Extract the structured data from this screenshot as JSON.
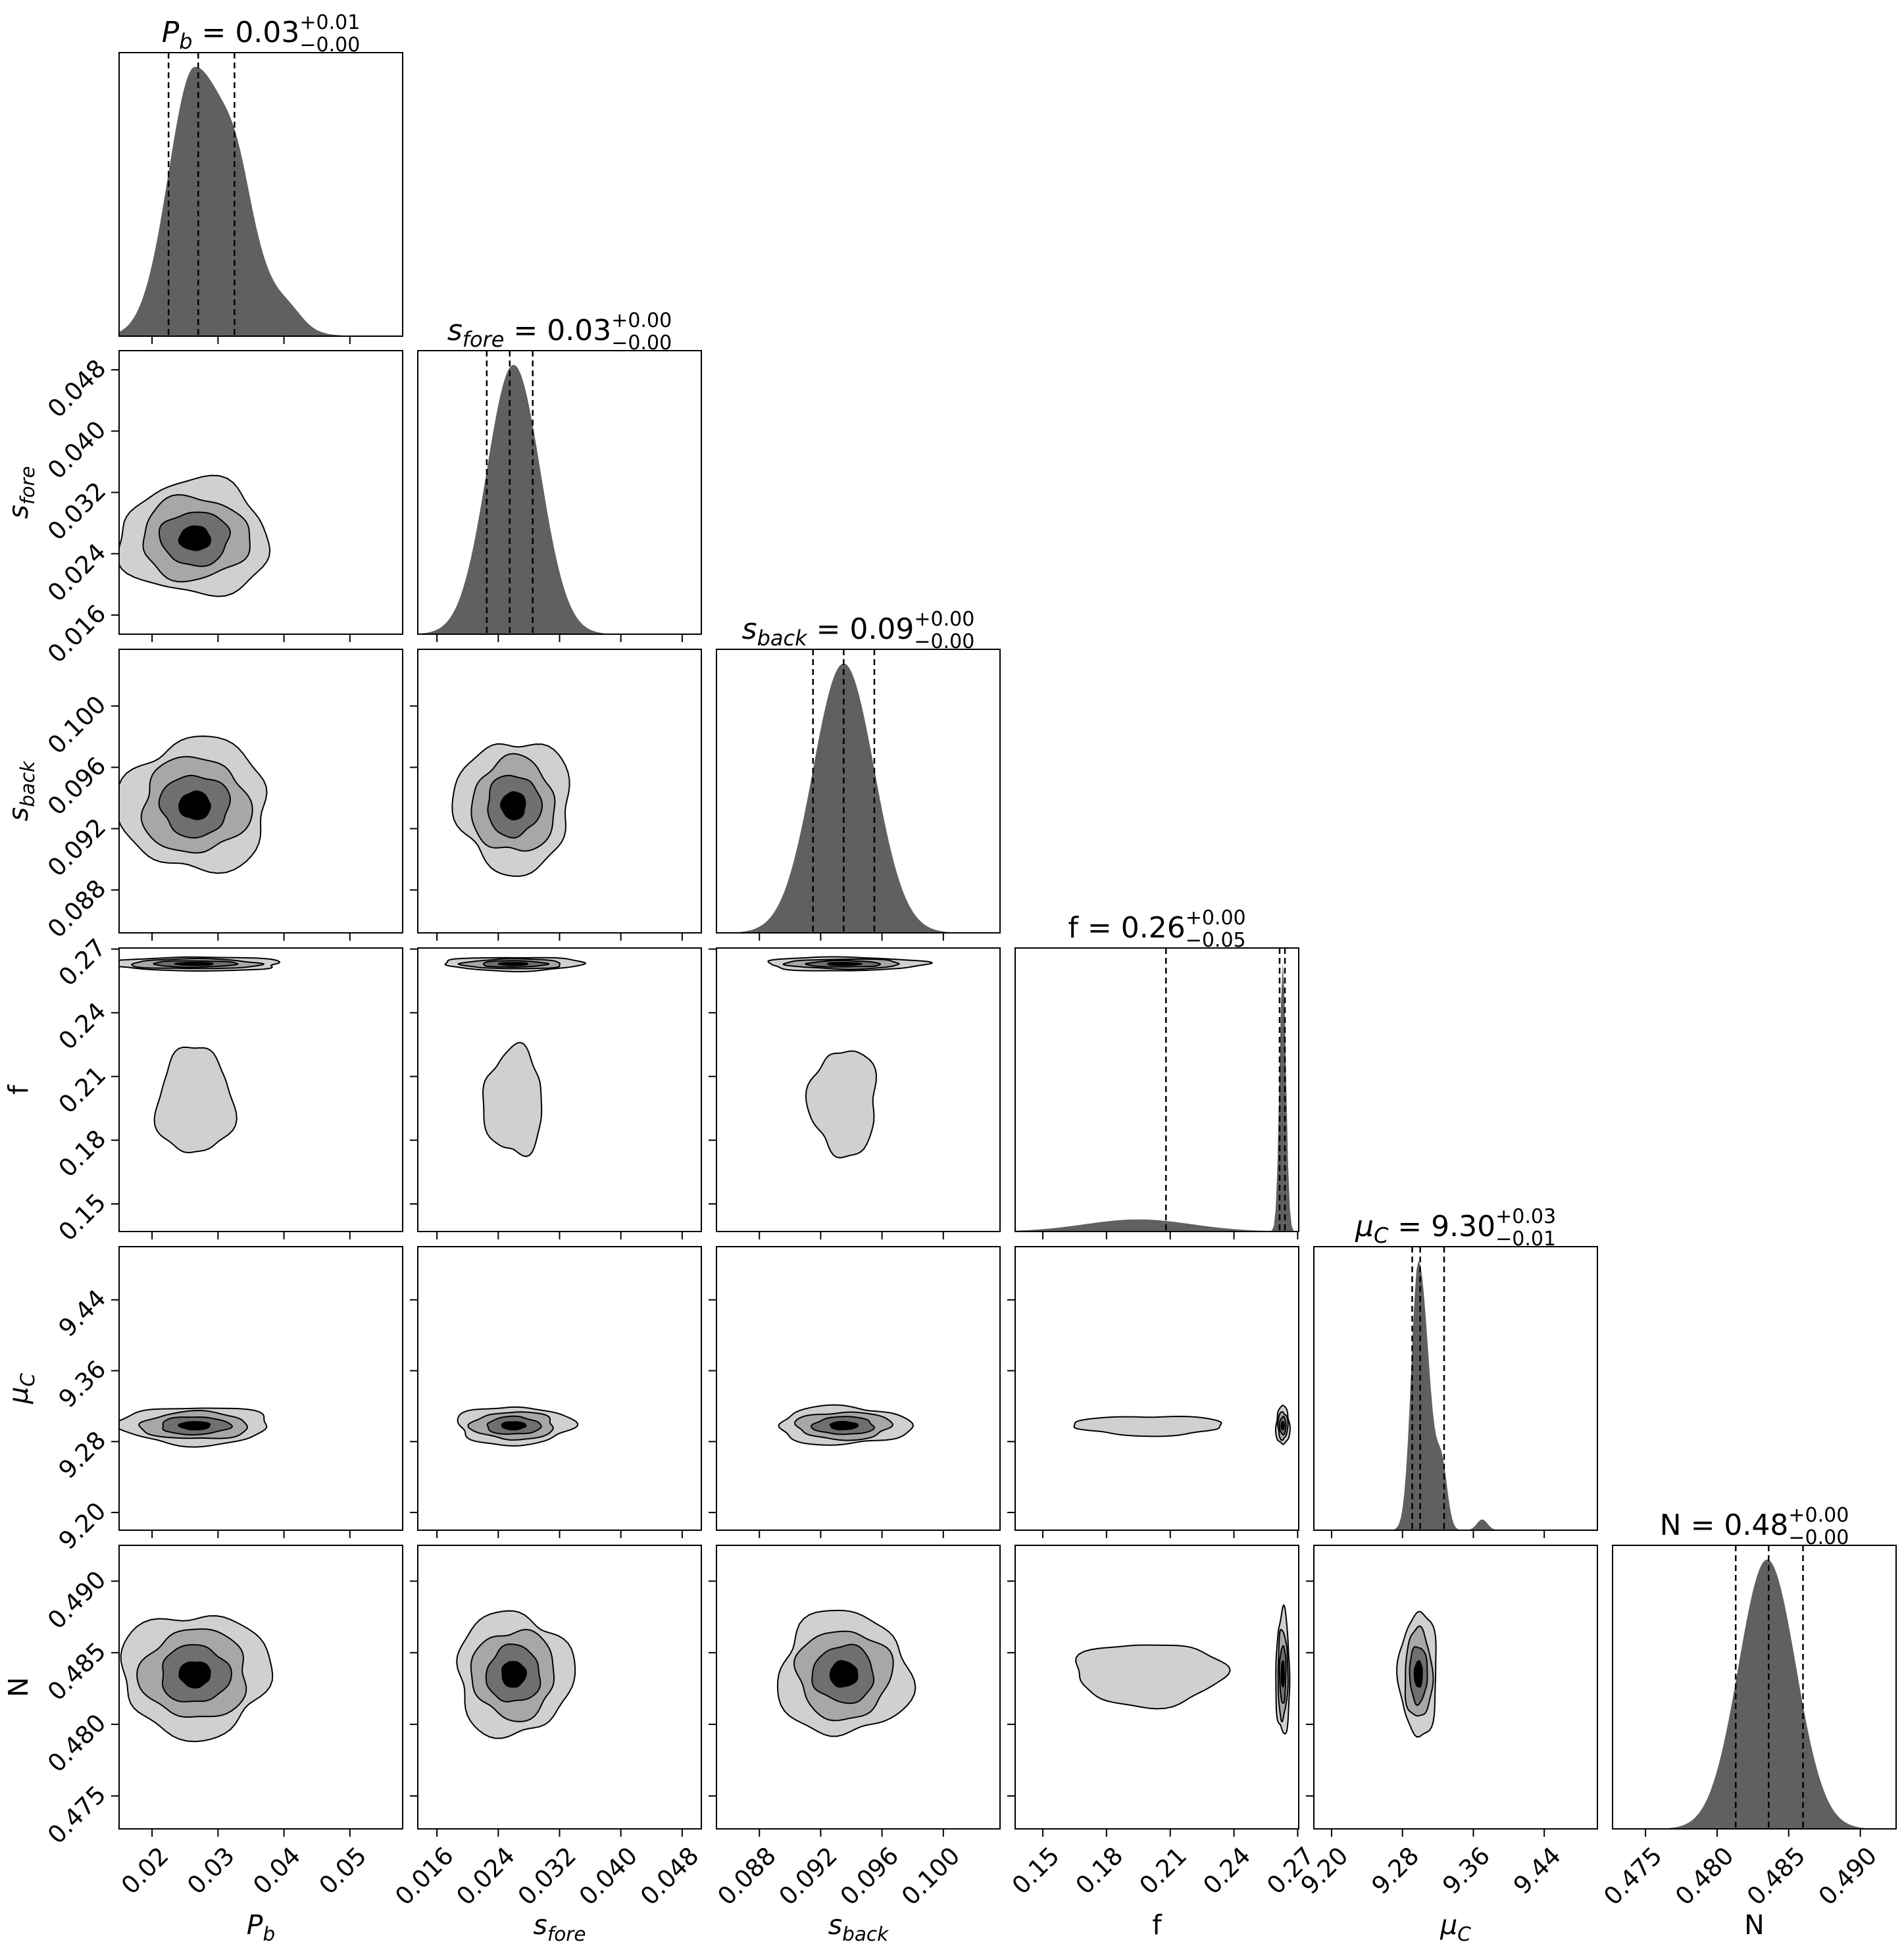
{
  "chart_data": {
    "type": "corner",
    "parameters": [
      {
        "key": "Pb",
        "label": {
          "base": "P",
          "sub": "b"
        },
        "range": [
          0.015,
          0.058
        ],
        "ticks": [
          0.02,
          0.03,
          0.04,
          0.05
        ],
        "tick_labels": [
          "0.02",
          "0.03",
          "0.04",
          "0.05"
        ],
        "title": {
          "value": "0.03",
          "plus": "+0.01",
          "minus": "−0.00"
        },
        "quantiles": [
          0.0225,
          0.027,
          0.0325
        ],
        "hist": {
          "peak": 0.0265,
          "sigma_left": 0.004,
          "sigma_right": 0.0065
        }
      },
      {
        "key": "s_fore",
        "label": {
          "base": "s",
          "sub": "fore"
        },
        "range": [
          0.0135,
          0.0505
        ],
        "ticks": [
          0.016,
          0.024,
          0.032,
          0.04,
          0.048
        ],
        "tick_labels": [
          "0.016",
          "0.024",
          "0.032",
          "0.040",
          "0.048"
        ],
        "title": {
          "value": "0.03",
          "plus": "+0.00",
          "minus": "−0.00"
        },
        "quantiles": [
          0.0225,
          0.0255,
          0.0285
        ],
        "hist": {
          "peak": 0.026,
          "sigma_left": 0.0035,
          "sigma_right": 0.0035
        }
      },
      {
        "key": "s_back",
        "label": {
          "base": "s",
          "sub": "back"
        },
        "range": [
          0.0852,
          0.1037
        ],
        "ticks": [
          0.088,
          0.092,
          0.096,
          0.1
        ],
        "tick_labels": [
          "0.088",
          "0.092",
          "0.096",
          "0.100"
        ],
        "title": {
          "value": "0.09",
          "plus": "+0.00",
          "minus": "−0.00"
        },
        "quantiles": [
          0.0915,
          0.0935,
          0.0955
        ],
        "hist": {
          "peak": 0.0935,
          "sigma_left": 0.002,
          "sigma_right": 0.002
        }
      },
      {
        "key": "f",
        "label": {
          "base": "f",
          "sub": ""
        },
        "range": [
          0.137,
          0.2705
        ],
        "ticks": [
          0.15,
          0.18,
          0.21,
          0.24,
          0.27
        ],
        "tick_labels": [
          "0.15",
          "0.18",
          "0.21",
          "0.24",
          "0.27"
        ],
        "title": {
          "value": "0.26",
          "plus": "+0.00",
          "minus": "−0.05"
        },
        "quantiles": [
          0.208,
          0.2615,
          0.264
        ],
        "hist": {
          "peak": 0.263,
          "sigma_left": 0.0015,
          "sigma_right": 0.0015
        }
      },
      {
        "key": "mu_C",
        "label": {
          "base": "μ",
          "sub": "C"
        },
        "range": [
          9.18,
          9.5
        ],
        "ticks": [
          9.2,
          9.28,
          9.36,
          9.44
        ],
        "tick_labels": [
          "9.20",
          "9.28",
          "9.36",
          "9.44"
        ],
        "title": {
          "value": "9.30",
          "plus": "+0.03",
          "minus": "−0.01"
        },
        "quantiles": [
          9.291,
          9.3,
          9.327
        ],
        "hist": {
          "peak": 9.298,
          "sigma_left": 0.008,
          "sigma_right": 0.012
        }
      },
      {
        "key": "N",
        "label": {
          "base": "N",
          "sub": ""
        },
        "range": [
          0.4727,
          0.4925
        ],
        "ticks": [
          0.475,
          0.48,
          0.485,
          0.49
        ],
        "tick_labels": [
          "0.475",
          "0.480",
          "0.485",
          "0.490"
        ],
        "title": {
          "value": "0.48",
          "plus": "+0.00",
          "minus": "−0.00"
        },
        "quantiles": [
          0.4813,
          0.4836,
          0.486
        ],
        "hist": {
          "peak": 0.4835,
          "sigma_left": 0.002,
          "sigma_right": 0.002
        }
      }
    ],
    "contour_levels": 4,
    "contour_colors": [
      "#d0d0d0",
      "#a7a7a7",
      "#6f6f6f",
      "#000000"
    ],
    "hist_color": "#606060",
    "quantile_line_style": "dashed"
  }
}
